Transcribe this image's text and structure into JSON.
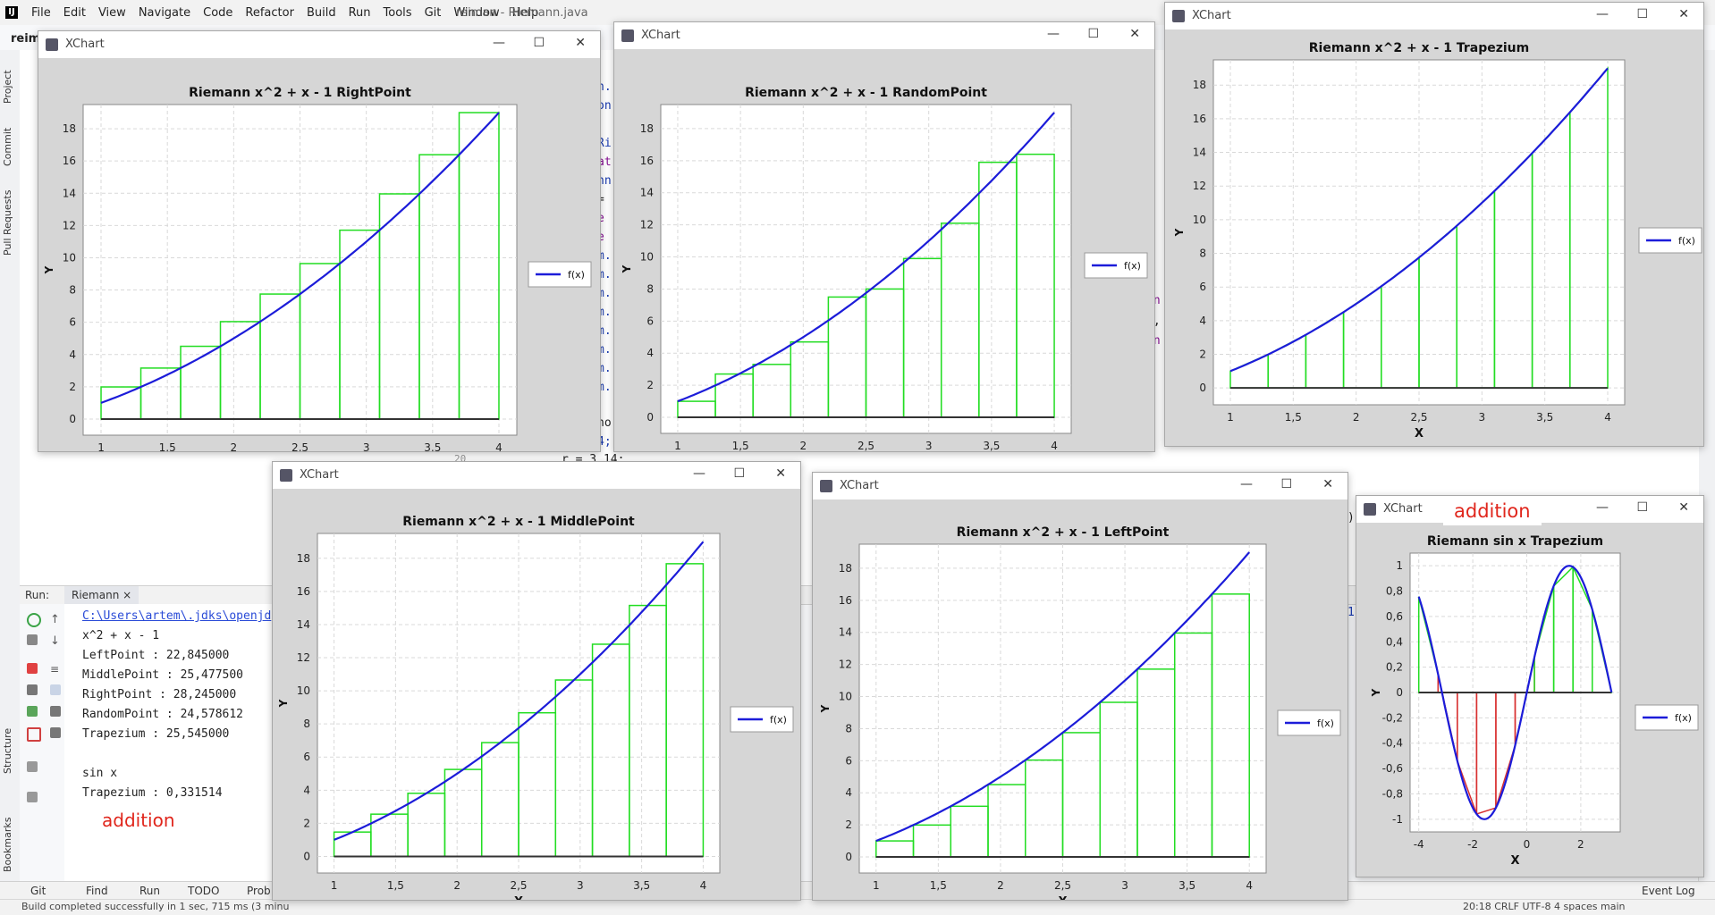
{
  "ide": {
    "menu": [
      "File",
      "Edit",
      "View",
      "Navigate",
      "Code",
      "Refactor",
      "Build",
      "Run",
      "Tools",
      "Git",
      "Window",
      "Help"
    ],
    "title": "reiman - Riemann.java",
    "project": "reima",
    "left_tabs": [
      "Project",
      "Commit",
      "Pull Requests",
      "Structure",
      "Bookmarks"
    ],
    "code_fragments": [
      "n.",
      "on",
      "Ri",
      "at",
      "nn",
      "=",
      "e",
      "e",
      "m.",
      "m.",
      "m.",
      "m.",
      "m.",
      "m.",
      "m.",
      "m.",
      "no",
      "4;",
      "r = 3.14;",
      "in",
      "r,",
      "in",
      "ew",
      "óf",
      "A",
      "1",
      ")"
    ],
    "line_number": "20"
  },
  "run": {
    "label": "Run:",
    "tab": "Riemann",
    "console": [
      "C:\\Users\\artem\\.jdks\\openjd",
      "x^2 + x - 1",
      "LeftPoint : 22,845000",
      "MiddlePoint : 25,477500",
      "RightPoint : 28,245000",
      "RandomPoint : 24,578612",
      "Trapezium : 25,545000",
      "",
      "sin x",
      "Trapezium : 0,331514"
    ],
    "addition_note": "addition"
  },
  "bottom_tabs": [
    "Git",
    "Find",
    "Run",
    "TODO",
    "Prob"
  ],
  "status": {
    "build": "Build completed successfully in 1 sec, 715 ms (3 minu",
    "event_log": "Event Log",
    "right": "20:18   CRLF   UTF-8   4 spaces   main"
  },
  "windows": [
    {
      "id": "right",
      "title": "XChart",
      "chart_title": "Riemann x^2 + x - 1 RightPoint",
      "method": "right",
      "func": "quad",
      "x": [
        1,
        4
      ],
      "ylim": [
        -1,
        19.5
      ],
      "xticks": [
        1,
        1.5,
        2,
        2.5,
        3,
        3.5,
        4
      ],
      "yticks": [
        0,
        2,
        4,
        6,
        8,
        10,
        12,
        14,
        16,
        18
      ],
      "xlabel": "X",
      "ylabel": "Y",
      "legend": "f(x)"
    },
    {
      "id": "random",
      "title": "XChart",
      "chart_title": "Riemann x^2 + x - 1 RandomPoint",
      "method": "random",
      "func": "quad",
      "x": [
        1,
        4
      ],
      "ylim": [
        -1,
        19.5
      ],
      "xticks": [
        1,
        1.5,
        2,
        2.5,
        3,
        3.5,
        4
      ],
      "yticks": [
        0,
        2,
        4,
        6,
        8,
        10,
        12,
        14,
        16,
        18
      ],
      "xlabel": "X",
      "ylabel": "Y",
      "legend": "f(x)",
      "random_heights": [
        1,
        2.7,
        3.3,
        4.7,
        7.5,
        8,
        9.9,
        12.1,
        15.9,
        16.4
      ]
    },
    {
      "id": "trap",
      "title": "XChart",
      "chart_title": "Riemann x^2 + x - 1 Trapezium",
      "method": "trap",
      "func": "quad",
      "x": [
        1,
        4
      ],
      "ylim": [
        -1,
        19.5
      ],
      "xticks": [
        1,
        1.5,
        2,
        2.5,
        3,
        3.5,
        4
      ],
      "yticks": [
        0,
        2,
        4,
        6,
        8,
        10,
        12,
        14,
        16,
        18
      ],
      "xlabel": "X",
      "ylabel": "Y",
      "legend": "f(x)"
    },
    {
      "id": "middle",
      "title": "XChart",
      "chart_title": "Riemann x^2 + x - 1 MiddlePoint",
      "method": "middle",
      "func": "quad",
      "x": [
        1,
        4
      ],
      "ylim": [
        -1,
        19.5
      ],
      "xticks": [
        1,
        1.5,
        2,
        2.5,
        3,
        3.5,
        4
      ],
      "yticks": [
        0,
        2,
        4,
        6,
        8,
        10,
        12,
        14,
        16,
        18
      ],
      "xlabel": "X",
      "ylabel": "Y",
      "legend": "f(x)"
    },
    {
      "id": "left",
      "title": "XChart",
      "chart_title": "Riemann x^2 + x - 1 LeftPoint",
      "method": "left",
      "func": "quad",
      "x": [
        1,
        4
      ],
      "ylim": [
        -1,
        19.5
      ],
      "xticks": [
        1,
        1.5,
        2,
        2.5,
        3,
        3.5,
        4
      ],
      "yticks": [
        0,
        2,
        4,
        6,
        8,
        10,
        12,
        14,
        16,
        18
      ],
      "xlabel": "X",
      "ylabel": "Y",
      "legend": "f(x)"
    },
    {
      "id": "sin",
      "title": "XChart",
      "chart_title": "Riemann sin x Trapezium",
      "method": "trap",
      "func": "sin",
      "x": [
        -4,
        3.14
      ],
      "ylim": [
        -1.1,
        1.1
      ],
      "xticks": [
        -4,
        -2,
        0,
        2
      ],
      "yticks": [
        -1,
        -0.8,
        -0.6,
        -0.4,
        -0.2,
        0,
        0.2,
        0.4,
        0.6,
        0.8,
        1
      ],
      "xlabel": "X",
      "ylabel": "Y",
      "legend": "f(x)",
      "addition_label": "addition"
    }
  ],
  "colors": {
    "curve": "#1c1cd9",
    "rect": "#22dd22",
    "neg": "#d83030",
    "axis0": "#333333"
  },
  "chart_data": [
    {
      "type": "line",
      "title": "Riemann x^2 + x - 1 RightPoint",
      "series": [
        {
          "name": "f(x)",
          "function": "x^2 + x - 1",
          "x_range": [
            1,
            4
          ]
        }
      ],
      "rectangles": {
        "n": 10,
        "method": "right"
      },
      "xlabel": "X",
      "ylabel": "Y",
      "xlim": [
        1,
        4
      ],
      "ylim": [
        -1,
        19.5
      ]
    },
    {
      "type": "line",
      "title": "Riemann x^2 + x - 1 RandomPoint",
      "series": [
        {
          "name": "f(x)",
          "function": "x^2 + x - 1",
          "x_range": [
            1,
            4
          ]
        }
      ],
      "rectangles": {
        "n": 10,
        "method": "random",
        "heights": [
          1,
          2.7,
          3.3,
          4.7,
          7.5,
          8,
          9.9,
          12.1,
          15.9,
          16.4
        ]
      },
      "xlabel": "X",
      "ylabel": "Y",
      "xlim": [
        1,
        4
      ],
      "ylim": [
        -1,
        19.5
      ]
    },
    {
      "type": "line",
      "title": "Riemann x^2 + x - 1 Trapezium",
      "series": [
        {
          "name": "f(x)",
          "function": "x^2 + x - 1",
          "x_range": [
            1,
            4
          ]
        }
      ],
      "rectangles": {
        "n": 10,
        "method": "trapezium"
      },
      "xlabel": "X",
      "ylabel": "Y",
      "xlim": [
        1,
        4
      ],
      "ylim": [
        -1,
        19.5
      ]
    },
    {
      "type": "line",
      "title": "Riemann x^2 + x - 1 MiddlePoint",
      "series": [
        {
          "name": "f(x)",
          "function": "x^2 + x - 1",
          "x_range": [
            1,
            4
          ]
        }
      ],
      "rectangles": {
        "n": 10,
        "method": "middle"
      },
      "xlabel": "X",
      "ylabel": "Y",
      "xlim": [
        1,
        4
      ],
      "ylim": [
        -1,
        19.5
      ]
    },
    {
      "type": "line",
      "title": "Riemann x^2 + x - 1 LeftPoint",
      "series": [
        {
          "name": "f(x)",
          "function": "x^2 + x - 1",
          "x_range": [
            1,
            4
          ]
        }
      ],
      "rectangles": {
        "n": 10,
        "method": "left"
      },
      "xlabel": "X",
      "ylabel": "Y",
      "xlim": [
        1,
        4
      ],
      "ylim": [
        -1,
        19.5
      ]
    },
    {
      "type": "line",
      "title": "Riemann sin x Trapezium",
      "series": [
        {
          "name": "f(x)",
          "function": "sin x",
          "x_range": [
            -4,
            3.14
          ]
        }
      ],
      "rectangles": {
        "n": 10,
        "method": "trapezium"
      },
      "xlabel": "X",
      "ylabel": "Y",
      "xlim": [
        -4,
        3.14
      ],
      "ylim": [
        -1.1,
        1.1
      ]
    }
  ]
}
